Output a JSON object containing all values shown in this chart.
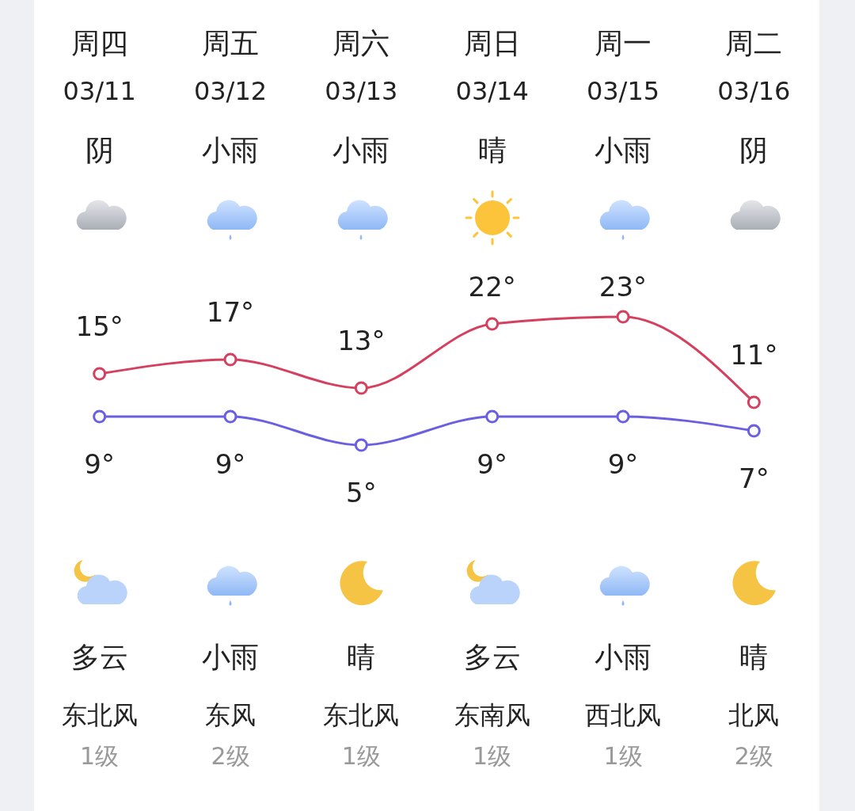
{
  "chart_data": {
    "type": "line",
    "categories": [
      "周四",
      "周五",
      "周六",
      "周日",
      "周一",
      "周二"
    ],
    "series": [
      {
        "color": "#d4405e",
        "values": [
          15,
          17,
          13,
          22,
          23,
          11
        ],
        "value_labels": [
          "15°",
          "17°",
          "13°",
          "22°",
          "23°",
          "11°"
        ]
      },
      {
        "color": "#6a5fe0",
        "values": [
          9,
          9,
          5,
          9,
          9,
          7
        ],
        "value_labels": [
          "9°",
          "9°",
          "5°",
          "9°",
          "9°",
          "7°"
        ]
      }
    ],
    "marker": "circle",
    "annotations": [
      "03/11",
      "03/12",
      "03/13",
      "03/14",
      "03/15",
      "03/16",
      "阴",
      "小雨",
      "小雨",
      "晴",
      "小雨",
      "阴",
      "多云",
      "小雨",
      "晴",
      "多云",
      "小雨",
      "晴",
      "东北风",
      "东风",
      "东北风",
      "东南风",
      "西北风",
      "北风",
      "1级",
      "2级",
      "1级",
      "1级",
      "1级",
      "2级"
    ]
  }
}
